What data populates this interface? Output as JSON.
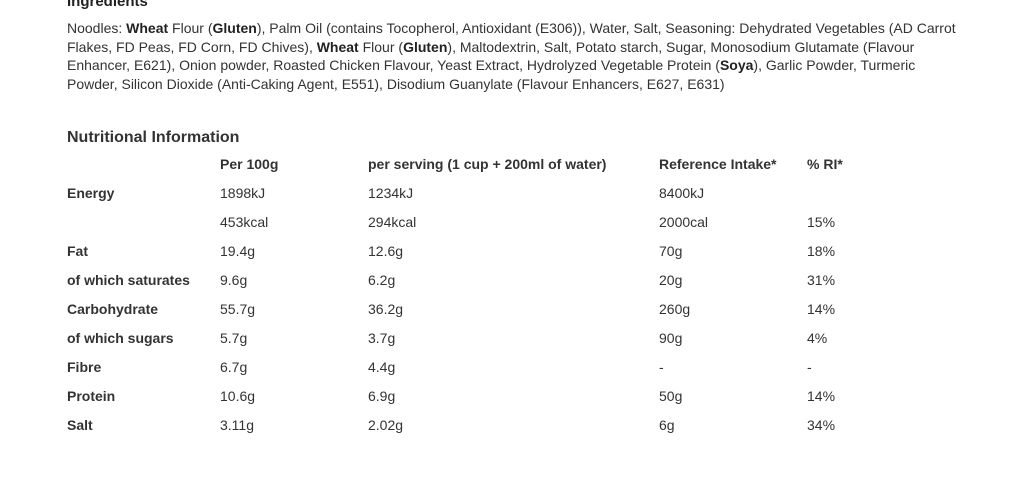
{
  "ingredients": {
    "heading": "Ingredients",
    "segments": [
      {
        "text": "Noodles: ",
        "bold": false
      },
      {
        "text": "Wheat",
        "bold": true
      },
      {
        "text": " Flour (",
        "bold": false
      },
      {
        "text": "Gluten",
        "bold": true
      },
      {
        "text": "), Palm Oil (contains Tocopherol, Antioxidant (E306)), Water, Salt, Seasoning: Dehydrated Vegetables (AD Carrot Flakes, FD Peas, FD Corn, FD Chives), ",
        "bold": false
      },
      {
        "text": "Wheat",
        "bold": true
      },
      {
        "text": " Flour (",
        "bold": false
      },
      {
        "text": "Gluten",
        "bold": true
      },
      {
        "text": "), Maltodextrin, Salt, Potato starch, Sugar, Monosodium Glutamate (Flavour Enhancer, E621), Onion powder, Roasted Chicken Flavour, Yeast Extract, Hydrolyzed Vegetable Protein (",
        "bold": false
      },
      {
        "text": "Soya",
        "bold": true
      },
      {
        "text": "), Garlic Powder, Turmeric Powder, Silicon Dioxide (Anti-Caking Agent, E551), Disodium Guanylate (Flavour Enhancers, E627, E631)",
        "bold": false
      }
    ]
  },
  "nutrition": {
    "heading": "Nutritional Information",
    "columns": [
      "",
      "Per 100g",
      "per serving (1 cup + 200ml of water)",
      "Reference Intake*",
      "% RI*"
    ],
    "rows": [
      [
        "Energy",
        "1898kJ",
        "1234kJ",
        "8400kJ",
        ""
      ],
      [
        "",
        "453kcal",
        "294kcal",
        "2000cal",
        "15%"
      ],
      [
        "Fat",
        "19.4g",
        "12.6g",
        "70g",
        "18%"
      ],
      [
        "of which saturates",
        "9.6g",
        "6.2g",
        "20g",
        "31%"
      ],
      [
        "Carbohydrate",
        "55.7g",
        "36.2g",
        "260g",
        "14%"
      ],
      [
        "of which sugars",
        "5.7g",
        "3.7g",
        "90g",
        "4%"
      ],
      [
        "Fibre",
        "6.7g",
        "4.4g",
        "-",
        "-"
      ],
      [
        "Protein",
        "10.6g",
        "6.9g",
        "50g",
        "14%"
      ],
      [
        "Salt",
        "3.11g",
        "2.02g",
        "6g",
        "34%"
      ]
    ]
  }
}
